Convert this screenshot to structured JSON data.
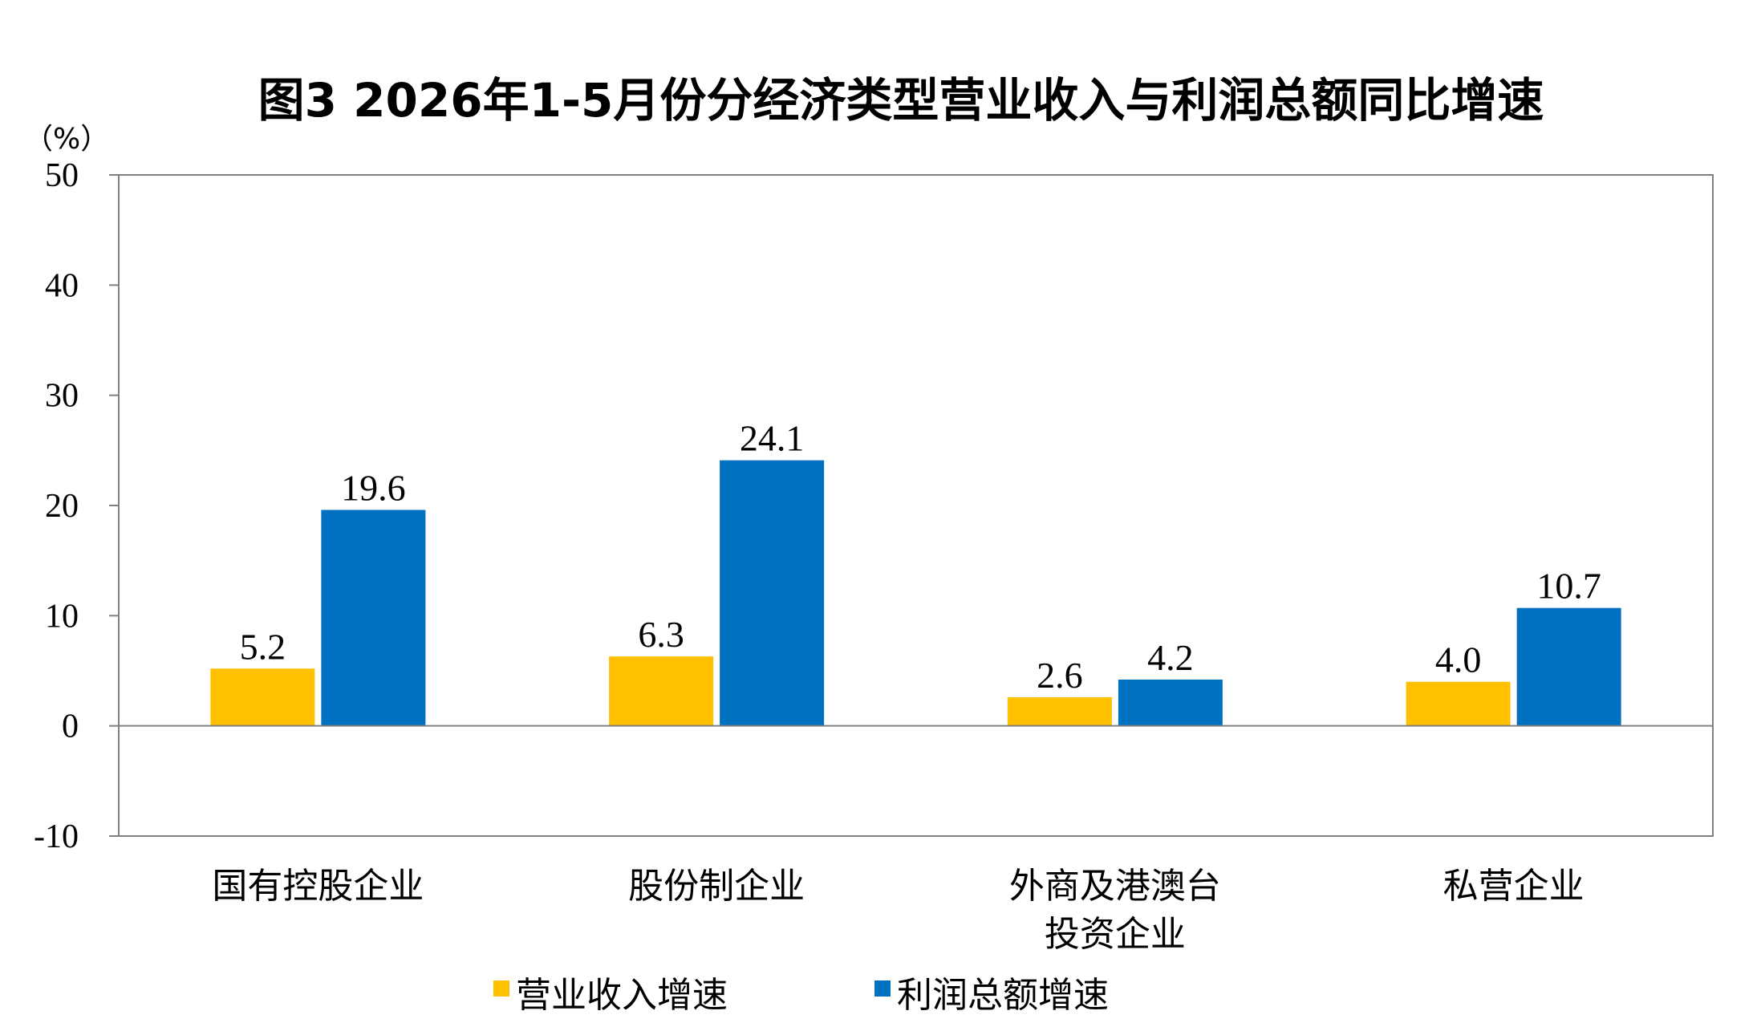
{
  "chart_data": {
    "type": "bar",
    "title": "图3 2026年1-5月份分经济类型营业收入与利润总额同比增速",
    "unit_label": "（%）",
    "xlabel": "",
    "ylabel": "",
    "ylim": [
      -10,
      50
    ],
    "yticks": [
      -10,
      0,
      10,
      20,
      30,
      40,
      50
    ],
    "grid": false,
    "legend_position": "bottom",
    "categories": [
      [
        "国有控股企业"
      ],
      [
        "股份制企业"
      ],
      [
        "外商及港澳台",
        "投资企业"
      ],
      [
        "私营企业"
      ]
    ],
    "series": [
      {
        "name": "营业收入增速",
        "color": "#FFC000",
        "values": [
          5.2,
          6.3,
          2.6,
          4.0
        ],
        "labels": [
          "5.2",
          "6.3",
          "2.6",
          "4.0"
        ]
      },
      {
        "name": "利润总额增速",
        "color": "#0070C0",
        "values": [
          19.6,
          24.1,
          4.2,
          10.7
        ],
        "labels": [
          "19.6",
          "24.1",
          "4.2",
          "10.7"
        ]
      }
    ]
  }
}
